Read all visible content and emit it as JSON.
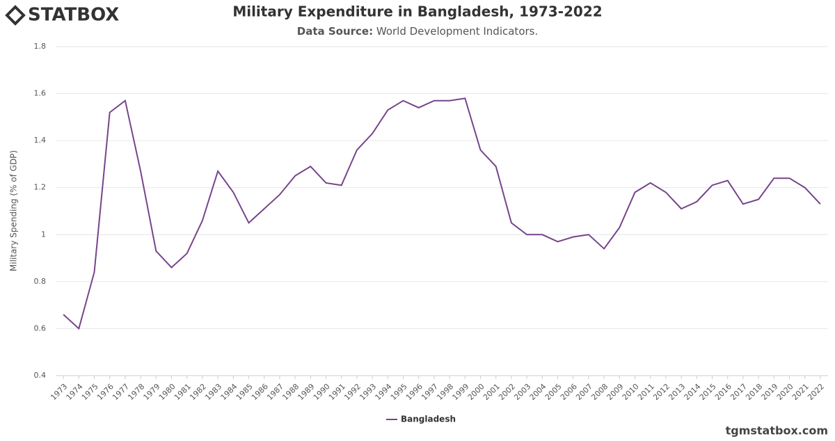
{
  "logo": "STATBOX",
  "watermark": "tgmstatbox.com",
  "chart_data": {
    "type": "line",
    "title": "Military Expenditure in Bangladesh, 1973-2022",
    "subtitle_label": "Data Source:",
    "subtitle": "World Development Indicators.",
    "y_label": "Military Spending (% of GDP)",
    "categories": [
      "1973",
      "1974",
      "1975",
      "1976",
      "1977",
      "1978",
      "1979",
      "1980",
      "1981",
      "1982",
      "1983",
      "1984",
      "1985",
      "1986",
      "1987",
      "1988",
      "1989",
      "1990",
      "1991",
      "1992",
      "1993",
      "1994",
      "1995",
      "1996",
      "1997",
      "1998",
      "1999",
      "2000",
      "2001",
      "2002",
      "2003",
      "2004",
      "2005",
      "2006",
      "2007",
      "2008",
      "2009",
      "2010",
      "2011",
      "2012",
      "2013",
      "2014",
      "2015",
      "2016",
      "2017",
      "2018",
      "2019",
      "2020",
      "2021",
      "2022"
    ],
    "series": [
      {
        "name": "Bangladesh",
        "color": "#76448a",
        "values": [
          0.66,
          0.6,
          0.84,
          1.52,
          1.57,
          1.27,
          0.93,
          0.86,
          0.92,
          1.06,
          1.27,
          1.18,
          1.05,
          1.11,
          1.17,
          1.25,
          1.29,
          1.22,
          1.21,
          1.36,
          1.43,
          1.53,
          1.57,
          1.54,
          1.57,
          1.57,
          1.58,
          1.36,
          1.29,
          1.05,
          1.0,
          1.0,
          0.97,
          0.99,
          1.0,
          0.94,
          1.03,
          1.18,
          1.22,
          1.18,
          1.11,
          1.14,
          1.21,
          1.23,
          1.13,
          1.15,
          1.24,
          1.24,
          1.2,
          1.13
        ]
      }
    ],
    "ylim": [
      0.4,
      1.8
    ],
    "yticks": [
      0.4,
      0.6,
      0.8,
      1,
      1.2,
      1.4,
      1.6,
      1.8
    ],
    "grid": true,
    "legend": "bottom"
  }
}
